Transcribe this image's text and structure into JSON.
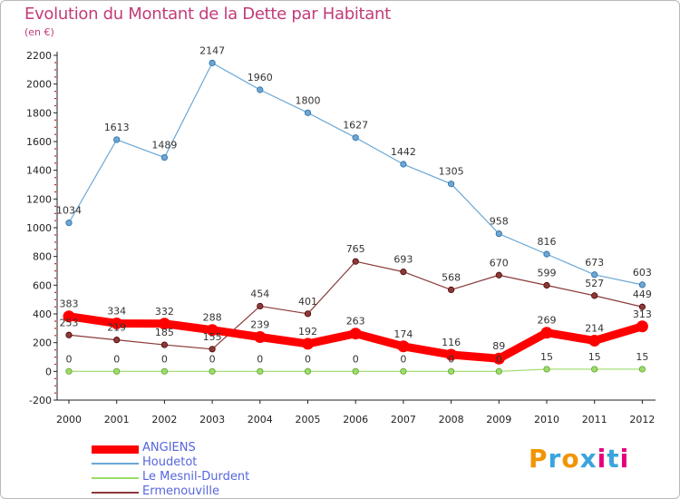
{
  "title": "Evolution du Montant de la Dette par Habitant",
  "subtitle": "(en €)",
  "logo": {
    "letters": [
      "P",
      "r",
      "o",
      "x",
      "i",
      "t",
      "i"
    ],
    "colors": [
      "#f29400",
      "#3aa5dc",
      "#f29400",
      "#3aa5dc",
      "#e6007e",
      "#3aa5dc",
      "#e6007e"
    ]
  },
  "chart_data": {
    "type": "line",
    "x": [
      "2000",
      "2001",
      "2002",
      "2003",
      "2004",
      "2005",
      "2006",
      "2007",
      "2008",
      "2009",
      "2010",
      "2011",
      "2012"
    ],
    "ylim": [
      -200,
      2200
    ],
    "yticks": [
      "-200",
      "0",
      "200",
      "400",
      "600",
      "800",
      "1000",
      "1200",
      "1400",
      "1600",
      "1800",
      "2000",
      "2200"
    ],
    "grid": false,
    "legend_position": "bottom-left",
    "series": [
      {
        "name": "ANGIENS",
        "color": "#ff0000",
        "width": 9,
        "values": [
          383,
          334,
          332,
          288,
          239,
          192,
          263,
          174,
          116,
          89,
          269,
          214,
          313
        ],
        "labels": [
          "383",
          "334",
          "332",
          "288",
          "239",
          "192",
          "263",
          "174",
          "116",
          "89",
          "269",
          "214",
          "313"
        ]
      },
      {
        "name": "Houdetot",
        "color": "#6aa7d6",
        "width": 1.2,
        "values": [
          1034,
          1613,
          1489,
          2147,
          1960,
          1800,
          1627,
          1442,
          1305,
          958,
          816,
          673,
          603
        ],
        "labels": [
          "1034",
          "1613",
          "1489",
          "2147",
          "1960",
          "1800",
          "1627",
          "1442",
          "1305",
          "958",
          "816",
          "673",
          "603"
        ]
      },
      {
        "name": "Le Mesnil-Durdent",
        "color": "#9ddc6a",
        "width": 1.2,
        "values": [
          0,
          0,
          0,
          0,
          0,
          0,
          0,
          0,
          0,
          0,
          15,
          15,
          15
        ],
        "labels": [
          "0",
          "0",
          "0",
          "0",
          "0",
          "0",
          "0",
          "0",
          "0",
          "0",
          "15",
          "15",
          "15"
        ]
      },
      {
        "name": "Ermenouville",
        "color": "#8b3a3a",
        "width": 1.2,
        "values": [
          253,
          219,
          185,
          155,
          454,
          401,
          765,
          693,
          568,
          670,
          599,
          527,
          449
        ],
        "labels": [
          "253",
          "219",
          "185",
          "155",
          "454",
          "401",
          "765",
          "693",
          "568",
          "670",
          "599",
          "527",
          "449"
        ]
      }
    ]
  },
  "legend": [
    {
      "name": "ANGIENS",
      "color": "#ff0000",
      "text_color": "#5566dd",
      "thickness": 9
    },
    {
      "name": "Houdetot",
      "color": "#6aa7d6",
      "text_color": "#5566dd",
      "thickness": 2
    },
    {
      "name": "Le Mesnil-Durdent",
      "color": "#9ddc6a",
      "text_color": "#5566dd",
      "thickness": 2
    },
    {
      "name": "Ermenouville",
      "color": "#8b3a3a",
      "text_color": "#5566dd",
      "thickness": 2
    }
  ]
}
